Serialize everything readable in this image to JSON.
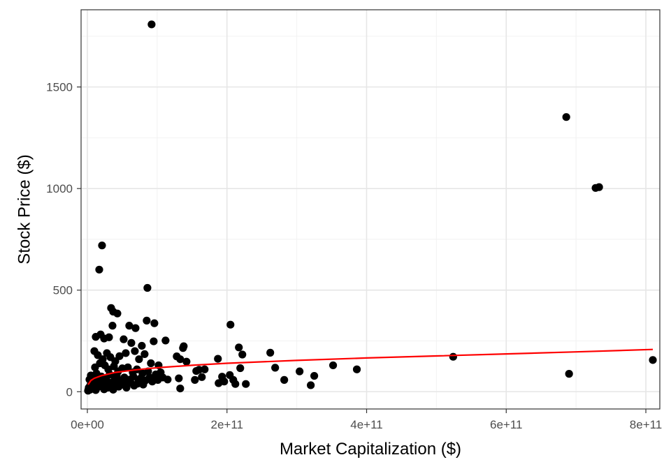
{
  "chart_data": {
    "type": "scatter",
    "title": "",
    "xlabel": "Market Capitalization ($)",
    "ylabel": "Stock Price ($)",
    "xlim": [
      -9000000000.0,
      820000000000.0
    ],
    "ylim": [
      -85,
      1880
    ],
    "x_ticks": [
      0,
      200000000000.0,
      400000000000.0,
      600000000000.0,
      800000000000.0
    ],
    "x_tick_labels": [
      "0e+00",
      "2e+11",
      "4e+11",
      "6e+11",
      "8e+11"
    ],
    "y_ticks": [
      0,
      500,
      1000,
      1500
    ],
    "y_tick_labels": [
      "0",
      "500",
      "1000",
      "1500"
    ],
    "grid": true,
    "point_color": "#000000",
    "trend_color": "#ff0000",
    "series": [
      {
        "type": "scatter",
        "points": [
          [
            92000000000.0,
            1808
          ],
          [
            686000000000.0,
            1352
          ],
          [
            728000000000.0,
            1003
          ],
          [
            733000000000.0,
            1007
          ],
          [
            21000000000.0,
            720
          ],
          [
            17000000000.0,
            601
          ],
          [
            86000000000.0,
            511
          ],
          [
            34000000000.0,
            412
          ],
          [
            43000000000.0,
            385
          ],
          [
            37000000000.0,
            394
          ],
          [
            205000000000.0,
            330
          ],
          [
            85000000000.0,
            350
          ],
          [
            96000000000.0,
            337
          ],
          [
            60000000000.0,
            325
          ],
          [
            36000000000.0,
            325
          ],
          [
            69000000000.0,
            313
          ],
          [
            12000000000.0,
            270
          ],
          [
            19000000000.0,
            282
          ],
          [
            24000000000.0,
            262
          ],
          [
            31000000000.0,
            268
          ],
          [
            52000000000.0,
            258
          ],
          [
            63000000000.0,
            240
          ],
          [
            78000000000.0,
            226
          ],
          [
            95000000000.0,
            248
          ],
          [
            112000000000.0,
            252
          ],
          [
            217000000000.0,
            218
          ],
          [
            262000000000.0,
            192
          ],
          [
            222000000000.0,
            183
          ],
          [
            138000000000.0,
            224
          ],
          [
            137000000000.0,
            215
          ],
          [
            128000000000.0,
            174
          ],
          [
            133000000000.0,
            160
          ],
          [
            142000000000.0,
            148
          ],
          [
            187000000000.0,
            162
          ],
          [
            168000000000.0,
            110
          ],
          [
            156000000000.0,
            102
          ],
          [
            160000000000.0,
            108
          ],
          [
            154000000000.0,
            58
          ],
          [
            164000000000.0,
            72
          ],
          [
            131000000000.0,
            66
          ],
          [
            133000000000.0,
            16
          ],
          [
            188000000000.0,
            42
          ],
          [
            196000000000.0,
            50
          ],
          [
            193000000000.0,
            74
          ],
          [
            204000000000.0,
            82
          ],
          [
            209000000000.0,
            58
          ],
          [
            212000000000.0,
            38
          ],
          [
            219000000000.0,
            116
          ],
          [
            227000000000.0,
            38
          ],
          [
            269000000000.0,
            118
          ],
          [
            282000000000.0,
            58
          ],
          [
            304000000000.0,
            100
          ],
          [
            320000000000.0,
            32
          ],
          [
            325000000000.0,
            78
          ],
          [
            352000000000.0,
            130
          ],
          [
            386000000000.0,
            110
          ],
          [
            524000000000.0,
            172
          ],
          [
            690000000000.0,
            88
          ],
          [
            810000000000.0,
            156
          ],
          [
            10000000000.0,
            200
          ],
          [
            15000000000.0,
            180
          ],
          [
            22000000000.0,
            160
          ],
          [
            28000000000.0,
            190
          ],
          [
            33000000000.0,
            170
          ],
          [
            40000000000.0,
            150
          ],
          [
            46000000000.0,
            175
          ],
          [
            55000000000.0,
            190
          ],
          [
            68000000000.0,
            200
          ],
          [
            74000000000.0,
            160
          ],
          [
            82000000000.0,
            185
          ],
          [
            91000000000.0,
            140
          ],
          [
            102000000000.0,
            130
          ],
          [
            11000000000.0,
            120
          ],
          [
            18000000000.0,
            140
          ],
          [
            25000000000.0,
            130
          ],
          [
            30000000000.0,
            110
          ],
          [
            38000000000.0,
            125
          ],
          [
            44000000000.0,
            100
          ],
          [
            50000000000.0,
            115
          ],
          [
            58000000000.0,
            120
          ],
          [
            65000000000.0,
            95
          ],
          [
            71000000000.0,
            110
          ],
          [
            79000000000.0,
            90
          ],
          [
            87000000000.0,
            100
          ],
          [
            98000000000.0,
            85
          ],
          [
            105000000000.0,
            95
          ],
          [
            108000000000.0,
            70
          ],
          [
            115000000000.0,
            60
          ],
          [
            3000000000.0,
            60
          ],
          [
            5000000000.0,
            80
          ],
          [
            7000000000.0,
            45
          ],
          [
            9000000000.0,
            70
          ],
          [
            13000000000.0,
            90
          ],
          [
            16000000000.0,
            55
          ],
          [
            20000000000.0,
            75
          ],
          [
            23000000000.0,
            50
          ],
          [
            27000000000.0,
            65
          ],
          [
            32000000000.0,
            85
          ],
          [
            35000000000.0,
            45
          ],
          [
            39000000000.0,
            60
          ],
          [
            42000000000.0,
            80
          ],
          [
            48000000000.0,
            55
          ],
          [
            53000000000.0,
            70
          ],
          [
            57000000000.0,
            45
          ],
          [
            61000000000.0,
            60
          ],
          [
            66000000000.0,
            75
          ],
          [
            73000000000.0,
            50
          ],
          [
            76000000000.0,
            65
          ],
          [
            83000000000.0,
            55
          ],
          [
            89000000000.0,
            70
          ],
          [
            93000000000.0,
            50
          ],
          [
            97000000000.0,
            60
          ],
          [
            101000000000.0,
            58
          ],
          [
            2000000000.0,
            20
          ],
          [
            4000000000.0,
            30
          ],
          [
            6000000000.0,
            15
          ],
          [
            8000000000.0,
            25
          ],
          [
            10000000000.0,
            35
          ],
          [
            14000000000.0,
            20
          ],
          [
            17000000000.0,
            40
          ],
          [
            21000000000.0,
            25
          ],
          [
            26000000000.0,
            35
          ],
          [
            29000000000.0,
            20
          ],
          [
            34000000000.0,
            30
          ],
          [
            36000000000.0,
            15
          ],
          [
            41000000000.0,
            40
          ],
          [
            45000000000.0,
            25
          ],
          [
            51000000000.0,
            35
          ],
          [
            56000000000.0,
            20
          ],
          [
            62000000000.0,
            45
          ],
          [
            67000000000.0,
            30
          ],
          [
            72000000000.0,
            40
          ],
          [
            80000000000.0,
            35
          ],
          [
            1000000000.0,
            5
          ],
          [
            1500000000.0,
            10
          ],
          [
            4000000000.0,
            10
          ],
          [
            12000000000.0,
            8
          ],
          [
            24000000000.0,
            12
          ],
          [
            37000000000.0,
            10
          ]
        ]
      },
      {
        "type": "line",
        "name": "",
        "points": [
          [
            1000000000.0,
            35
          ],
          [
            5000000000.0,
            55
          ],
          [
            10000000000.0,
            66
          ],
          [
            20000000000.0,
            79
          ],
          [
            40000000000.0,
            95
          ],
          [
            70000000000.0,
            108
          ],
          [
            100000000000.0,
            118
          ],
          [
            150000000000.0,
            130
          ],
          [
            200000000000.0,
            140
          ],
          [
            300000000000.0,
            154
          ],
          [
            400000000000.0,
            166
          ],
          [
            500000000000.0,
            176
          ],
          [
            600000000000.0,
            186
          ],
          [
            700000000000.0,
            196
          ],
          [
            810000000000.0,
            208
          ]
        ]
      }
    ]
  }
}
